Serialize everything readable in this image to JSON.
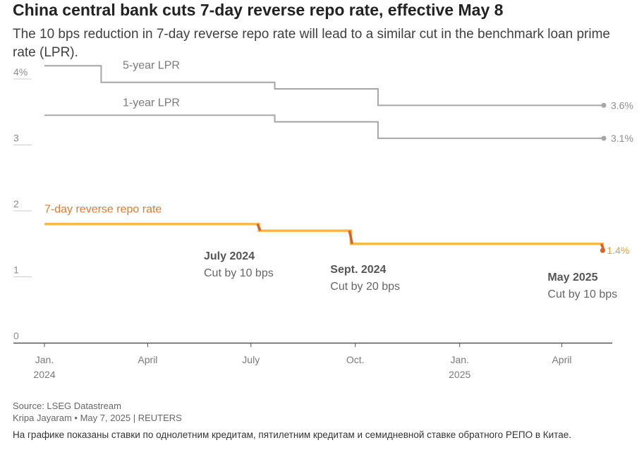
{
  "title": "China central bank cuts 7-day reverse repo rate, effective May 8",
  "subtitle": "The 10 bps reduction in 7-day reverse repo rate will lead to a similar cut in the benchmark loan prime rate (LPR).",
  "chart_data": {
    "type": "line",
    "ylim": [
      0,
      4.2
    ],
    "y_ticks": [
      {
        "value": 0,
        "label": "0"
      },
      {
        "value": 1,
        "label": "1"
      },
      {
        "value": 2,
        "label": "2"
      },
      {
        "value": 3,
        "label": "3"
      },
      {
        "value": 4,
        "label": "4%"
      }
    ],
    "xlim": [
      "2024-01-01",
      "2025-05-08"
    ],
    "x_ticks": [
      {
        "date": "2024-01-01",
        "label": "Jan.",
        "sublabel": "2024"
      },
      {
        "date": "2024-04-01",
        "label": "April",
        "sublabel": ""
      },
      {
        "date": "2024-07-01",
        "label": "July",
        "sublabel": ""
      },
      {
        "date": "2024-10-01",
        "label": "Oct.",
        "sublabel": ""
      },
      {
        "date": "2025-01-01",
        "label": "Jan.",
        "sublabel": "2025"
      },
      {
        "date": "2025-04-01",
        "label": "April",
        "sublabel": ""
      }
    ],
    "series": [
      {
        "name": "5-year LPR",
        "color": "#a6a6a6",
        "end_label": "3.6%",
        "points": [
          [
            "2024-01-01",
            4.2
          ],
          [
            "2024-02-20",
            4.2
          ],
          [
            "2024-02-20",
            3.95
          ],
          [
            "2024-07-22",
            3.95
          ],
          [
            "2024-07-22",
            3.85
          ],
          [
            "2024-10-21",
            3.85
          ],
          [
            "2024-10-21",
            3.6
          ],
          [
            "2025-05-08",
            3.6
          ]
        ]
      },
      {
        "name": "1-year LPR",
        "color": "#a6a6a6",
        "end_label": "3.1%",
        "points": [
          [
            "2024-01-01",
            3.45
          ],
          [
            "2024-07-22",
            3.45
          ],
          [
            "2024-07-22",
            3.35
          ],
          [
            "2024-10-21",
            3.35
          ],
          [
            "2024-10-21",
            3.1
          ],
          [
            "2025-05-08",
            3.1
          ]
        ]
      },
      {
        "name": "7-day reverse repo rate",
        "color": "#f5b94e",
        "end_label": "1.4%",
        "points": [
          [
            "2024-01-01",
            1.8
          ],
          [
            "2024-07-08",
            1.8
          ],
          [
            "2024-07-08",
            1.7
          ],
          [
            "2024-09-27",
            1.7
          ],
          [
            "2024-09-27",
            1.5
          ],
          [
            "2025-05-07",
            1.5
          ],
          [
            "2025-05-07",
            1.4
          ]
        ]
      }
    ],
    "annotations": [
      {
        "date": "2024-07-08",
        "title": "July 2024",
        "text": "Cut by 10 bps"
      },
      {
        "date": "2024-09-27",
        "title": "Sept. 2024",
        "text": "Cut by 20 bps"
      },
      {
        "date": "2025-05-07",
        "title": "May 2025",
        "text": "Cut by 10 bps"
      }
    ],
    "cut_color": "#d4642a"
  },
  "source": "Source: LSEG Datastream",
  "credit": "Kripa Jayaram • May 7, 2025 | REUTERS",
  "note": "На графике показаны ставки по однолетним кредитам, пятилетним кредитам и семидневной ставке обратного РЕПО в Китае."
}
